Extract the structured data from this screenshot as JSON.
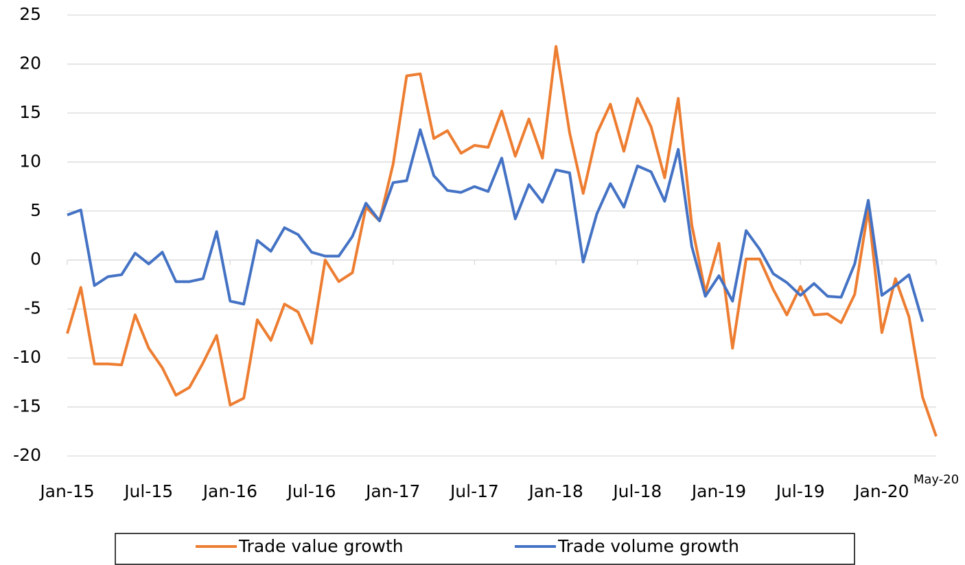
{
  "chart_data": {
    "type": "line",
    "categories": [
      "Jan-15",
      null,
      null,
      null,
      null,
      null,
      "Jul-15",
      null,
      null,
      null,
      null,
      null,
      "Jan-16",
      null,
      null,
      null,
      null,
      null,
      "Jul-16",
      null,
      null,
      null,
      null,
      null,
      "Jan-17",
      null,
      null,
      null,
      null,
      null,
      "Jul-17",
      null,
      null,
      null,
      null,
      null,
      "Jan-18",
      null,
      null,
      null,
      null,
      null,
      "Jul-18",
      null,
      null,
      null,
      null,
      null,
      "Jan-19",
      null,
      null,
      null,
      null,
      null,
      "Jul-19",
      null,
      null,
      null,
      null,
      null,
      "Jan-20",
      null,
      null,
      null,
      "May-20"
    ],
    "series": [
      {
        "name": "Trade value growth",
        "color": "#ed7d31",
        "values": [
          -7.5,
          -2.8,
          -10.6,
          -10.6,
          -10.7,
          -5.6,
          -9,
          -11,
          -13.8,
          -13,
          -10.5,
          -7.7,
          -14.8,
          -14.1,
          -6.1,
          -8.2,
          -4.5,
          -5.3,
          -8.5,
          0,
          -2.2,
          -1.3,
          5.4,
          4,
          9.8,
          18.8,
          19,
          12.4,
          13.2,
          10.9,
          11.7,
          11.5,
          15.2,
          10.6,
          14.4,
          10.4,
          21.8,
          13,
          6.8,
          12.9,
          15.9,
          11.1,
          16.5,
          13.6,
          8.4,
          16.5,
          3.6,
          -3.3,
          1.7,
          -9,
          0.1,
          0.1,
          -3,
          -5.6,
          -2.7,
          -5.6,
          -5.5,
          -6.4,
          -3.5,
          5.2,
          -7.4,
          -1.9,
          -5.8,
          -14,
          -18
        ]
      },
      {
        "name": "Trade volume growth",
        "color": "#4472c4",
        "values": [
          4.6,
          5.1,
          -2.6,
          -1.7,
          -1.5,
          0.7,
          -0.4,
          0.8,
          -2.2,
          -2.2,
          -1.9,
          2.9,
          -4.2,
          -4.5,
          2,
          0.9,
          3.3,
          2.6,
          0.8,
          0.4,
          0.4,
          2.4,
          5.8,
          4,
          7.9,
          8.1,
          13.3,
          8.6,
          7.1,
          6.9,
          7.5,
          7,
          10.4,
          4.2,
          7.7,
          5.9,
          9.2,
          8.9,
          -0.2,
          4.7,
          7.8,
          5.4,
          9.6,
          9,
          6,
          11.3,
          1.4,
          -3.7,
          -1.6,
          -4.2,
          3,
          1.1,
          -1.4,
          -2.3,
          -3.6,
          -2.4,
          -3.7,
          -3.8,
          -0.4,
          6.1,
          -3.6,
          -2.6,
          -1.5,
          -6.3,
          null
        ]
      }
    ],
    "ylim": [
      -20,
      25
    ],
    "yticks": [
      -20,
      -15,
      -10,
      -5,
      0,
      5,
      10,
      15,
      20,
      25
    ],
    "grid": true,
    "legend": "bottom"
  }
}
